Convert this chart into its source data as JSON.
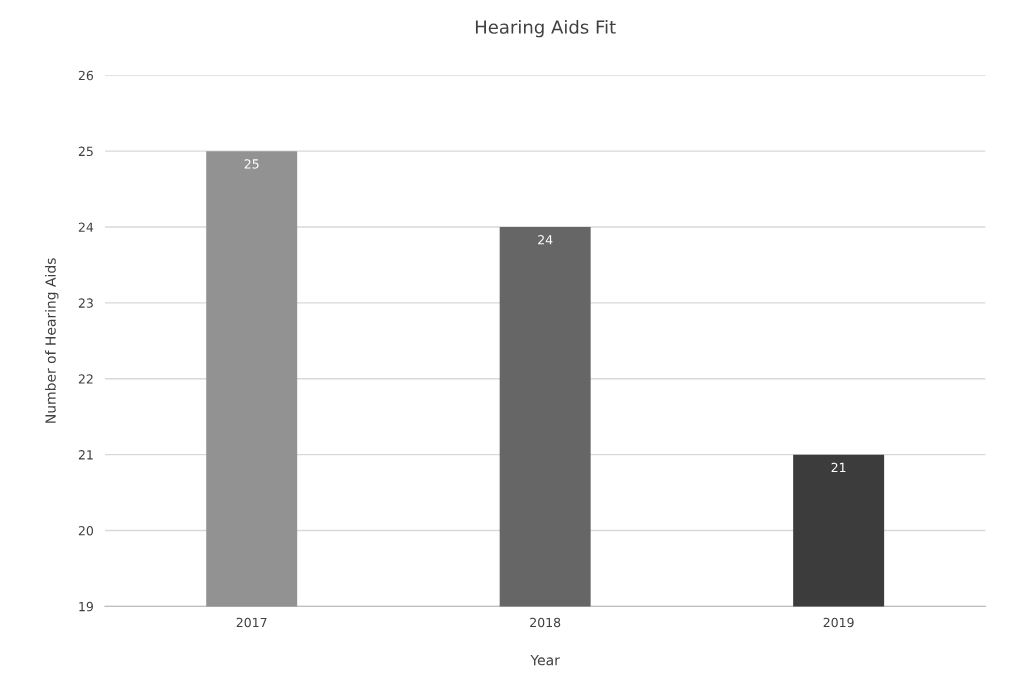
{
  "chart_data": {
    "type": "bar",
    "title": "Hearing Aids Fit",
    "xlabel": "Year",
    "ylabel": "Number of Hearing Aids",
    "categories": [
      "2017",
      "2018",
      "2019"
    ],
    "values": [
      25,
      24,
      21
    ],
    "colors": [
      "#929292",
      "#666666",
      "#3c3c3c"
    ],
    "ylim": [
      19,
      26
    ],
    "yticks": [
      19,
      20,
      21,
      22,
      23,
      24,
      25,
      26
    ],
    "grid": "y",
    "data_labels": true,
    "legend": false
  }
}
